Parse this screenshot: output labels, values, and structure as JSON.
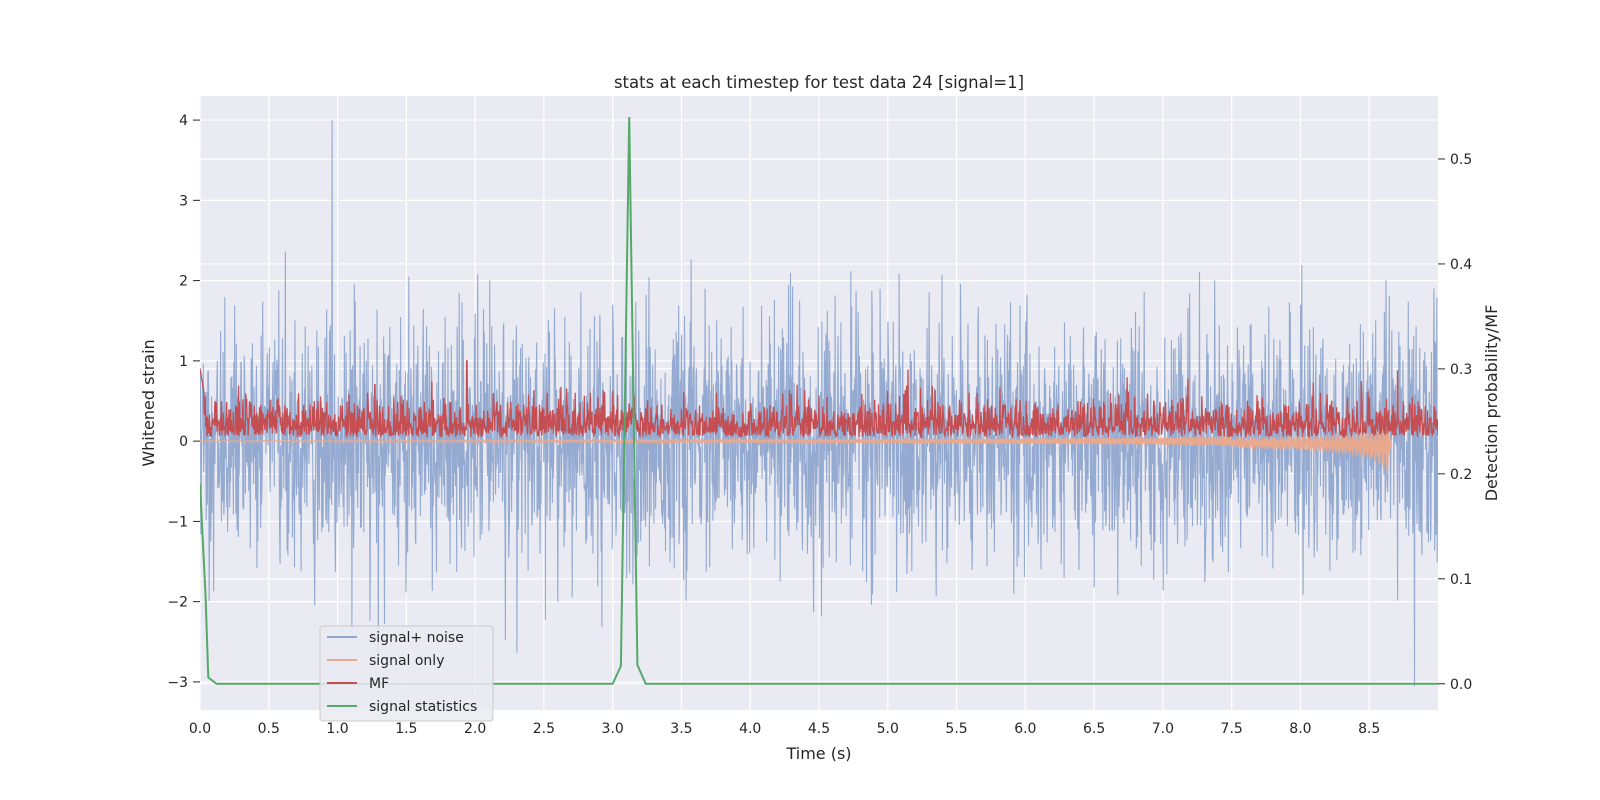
{
  "chart_data": {
    "type": "line",
    "title": "stats at each timestep for test data 24 [signal=1]",
    "xlabel": "Time (s)",
    "ylabel": "Whitened strain",
    "ylabel_right": "Detection probability/MF",
    "xlim": [
      0.0,
      9.0
    ],
    "ylim": [
      -3.35,
      4.3
    ],
    "ylim_right": [
      -0.025,
      0.56
    ],
    "xticks": [
      0.0,
      0.5,
      1.0,
      1.5,
      2.0,
      2.5,
      3.0,
      3.5,
      4.0,
      4.5,
      5.0,
      5.5,
      6.0,
      6.5,
      7.0,
      7.5,
      8.0,
      8.5
    ],
    "xtick_labels": [
      "0.0",
      "0.5",
      "1.0",
      "1.5",
      "2.0",
      "2.5",
      "3.0",
      "3.5",
      "4.0",
      "4.5",
      "5.0",
      "5.5",
      "6.0",
      "6.5",
      "7.0",
      "7.5",
      "8.0",
      "8.5"
    ],
    "yticks": [
      -3,
      -2,
      -1,
      0,
      1,
      2,
      3,
      4
    ],
    "ytick_labels": [
      "−3",
      "−2",
      "−1",
      "0",
      "1",
      "2",
      "3",
      "4"
    ],
    "yticks_right": [
      0.0,
      0.1,
      0.2,
      0.3,
      0.4,
      0.5
    ],
    "ytick_labels_right": [
      "0.0",
      "0.1",
      "0.2",
      "0.3",
      "0.4",
      "0.5"
    ],
    "grid": true,
    "legend_placement": "lower-left",
    "series": [
      {
        "name": "signal+ noise",
        "axis": "left",
        "color": "#8fa6cf",
        "description_values": {
          "x_range": [
            0.0,
            9.0
          ],
          "typical_range": [
            -2.0,
            2.0
          ],
          "max": 4.0,
          "min": -3.05,
          "max_at": 0.96
        }
      },
      {
        "name": "signal only",
        "axis": "left",
        "color": "#e8a98f",
        "envelope": {
          "x": [
            0.0,
            2.0,
            4.0,
            5.0,
            6.0,
            7.0,
            7.5,
            8.0,
            8.3,
            8.5,
            8.6,
            8.64,
            8.66
          ],
          "amplitude": [
            0.01,
            0.015,
            0.02,
            0.025,
            0.035,
            0.05,
            0.065,
            0.09,
            0.12,
            0.17,
            0.25,
            0.32,
            0.0
          ]
        }
      },
      {
        "name": "MF",
        "axis": "left",
        "color": "#c44e52",
        "description_values": {
          "x_range": [
            0.0,
            9.0
          ],
          "typical_range": [
            0.05,
            0.7
          ],
          "max": 1.0,
          "max_at": 1.94
        }
      },
      {
        "name": "signal statistics",
        "axis": "right",
        "color": "#55a868",
        "x": [
          0.0,
          0.04,
          0.06,
          0.12,
          3.0,
          3.06,
          3.12,
          3.18,
          3.24,
          3.3,
          9.0
        ],
        "values": [
          0.19,
          0.085,
          0.006,
          0.0,
          0.0,
          0.017,
          0.54,
          0.018,
          0.0,
          0.0,
          0.0
        ]
      }
    ]
  }
}
